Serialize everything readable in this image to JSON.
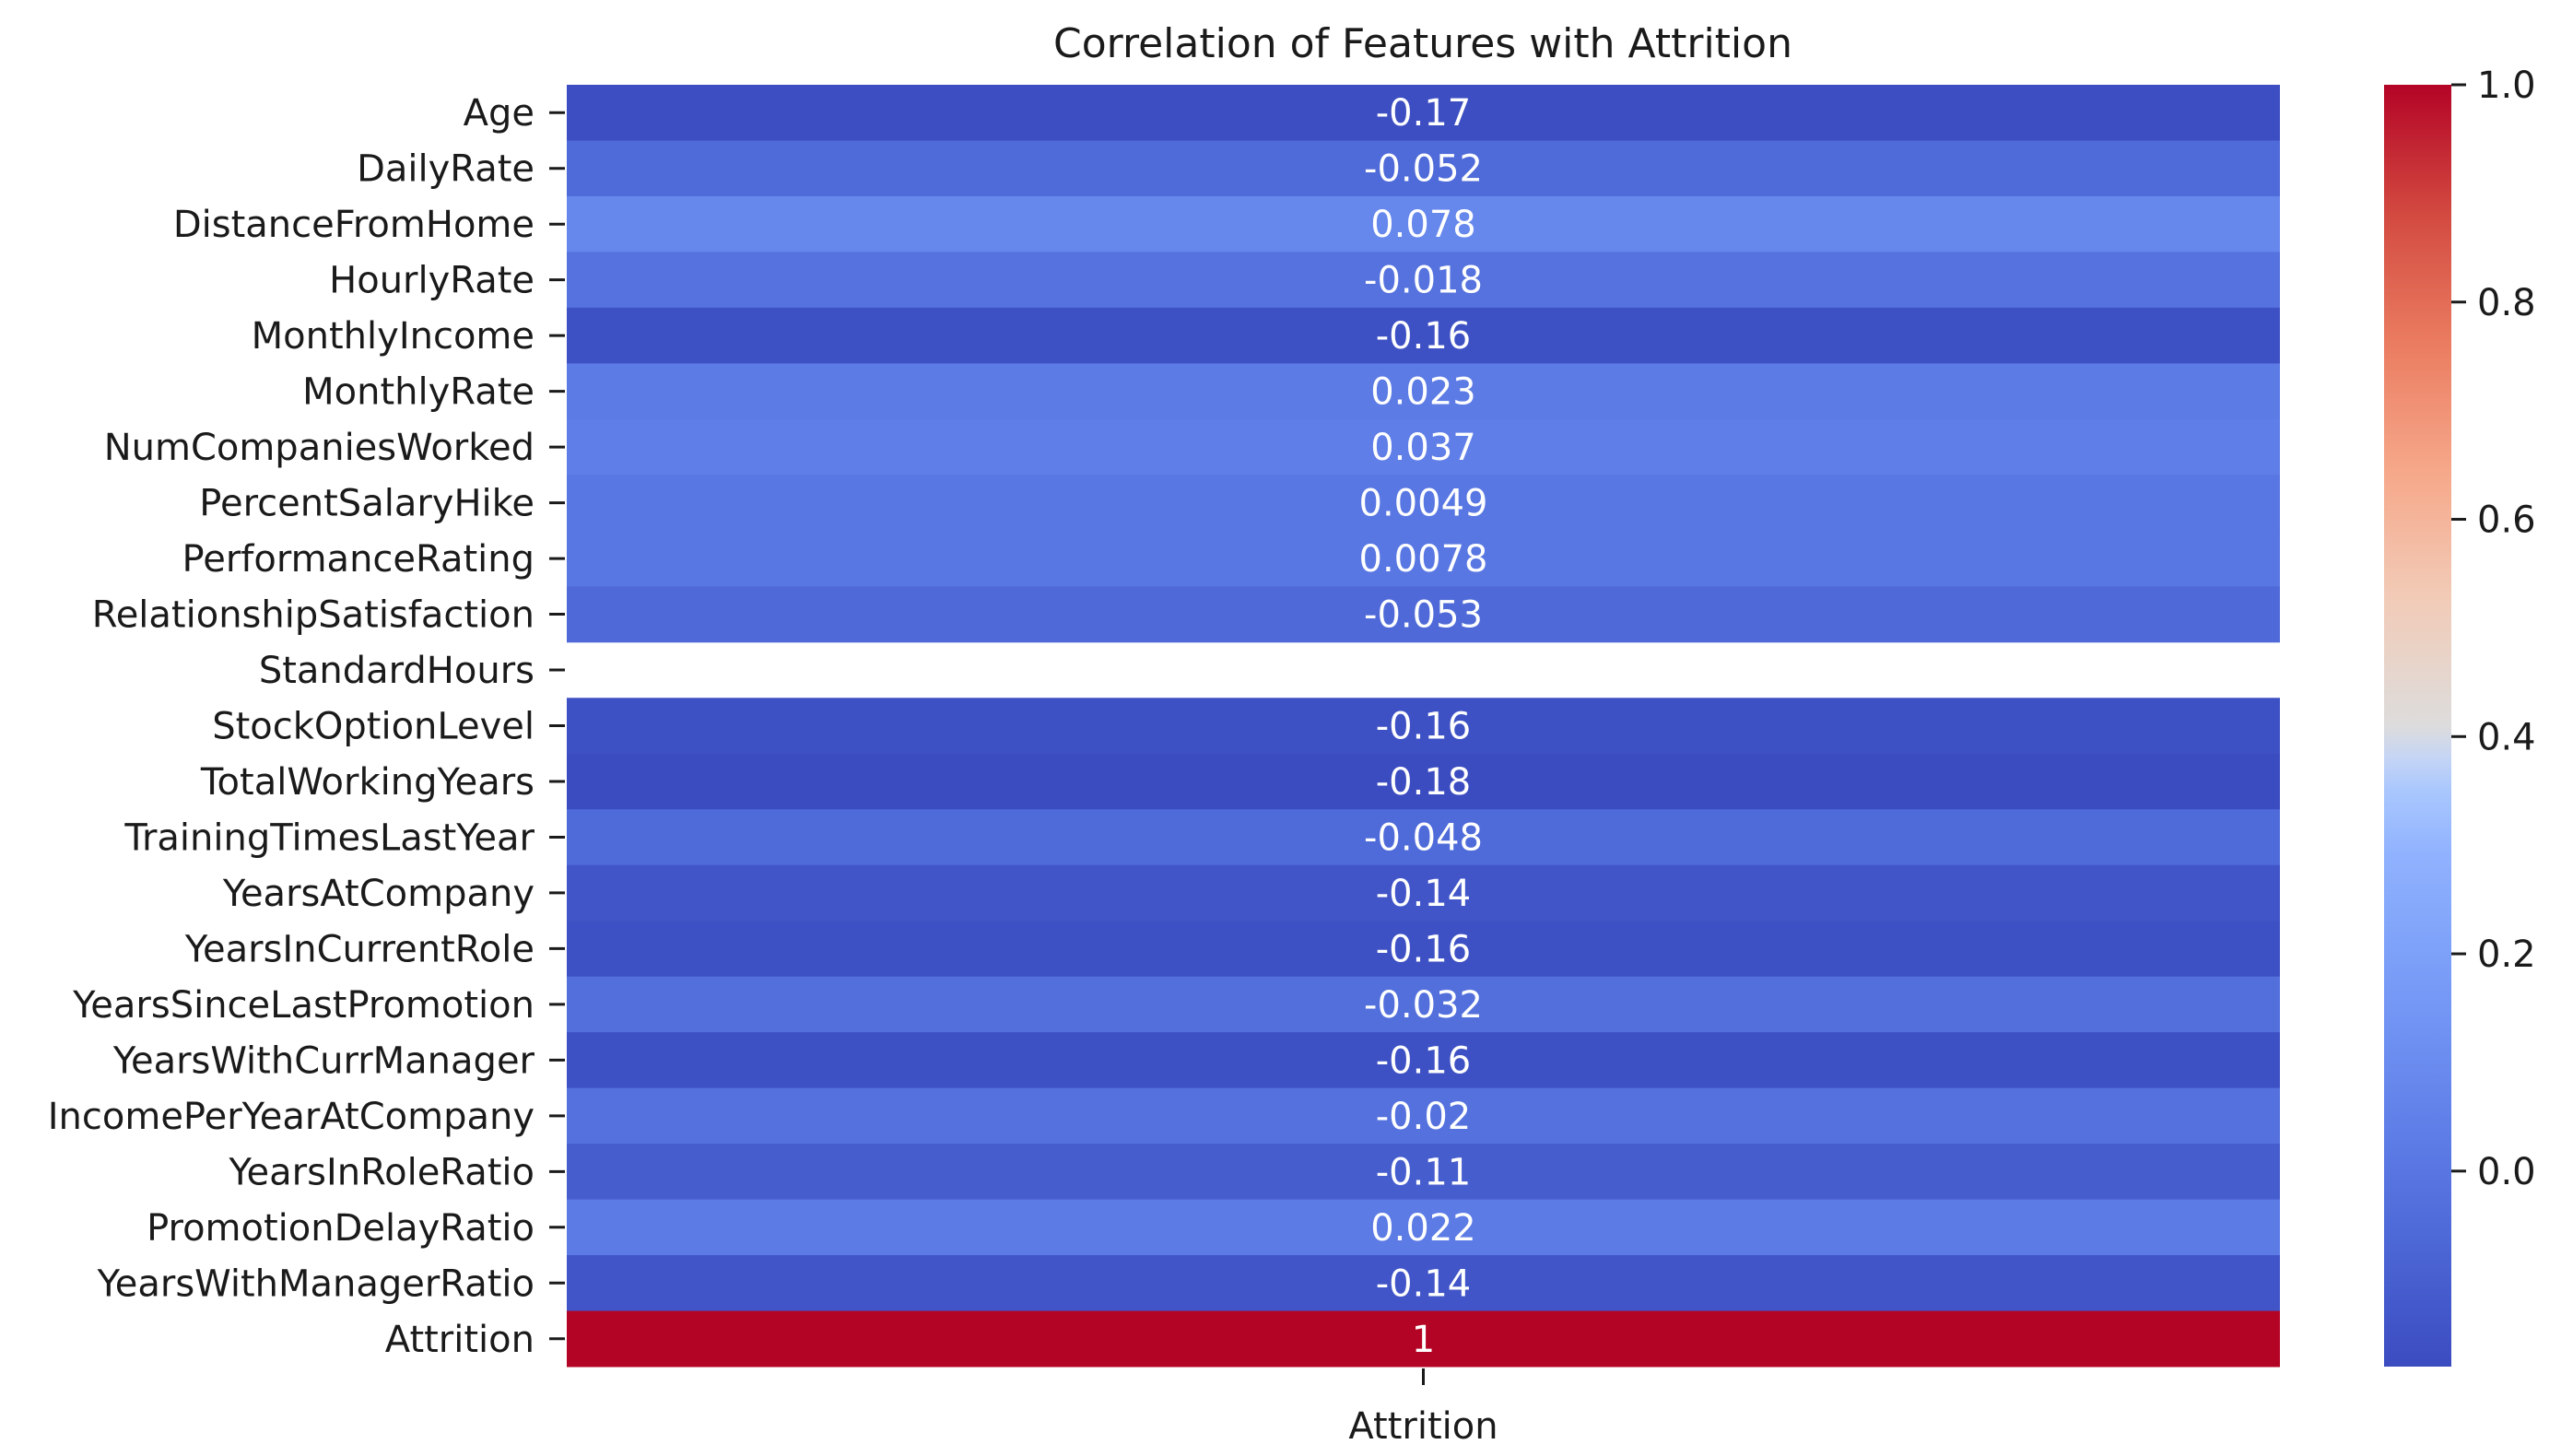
{
  "chart_data": {
    "type": "heatmap",
    "title": "Correlation of Features with Attrition",
    "columns": [
      "Attrition"
    ],
    "rows": [
      {
        "label": "Age",
        "value": -0.17,
        "text": "-0.17"
      },
      {
        "label": "DailyRate",
        "value": -0.052,
        "text": "-0.052"
      },
      {
        "label": "DistanceFromHome",
        "value": 0.078,
        "text": "0.078"
      },
      {
        "label": "HourlyRate",
        "value": -0.018,
        "text": "-0.018"
      },
      {
        "label": "MonthlyIncome",
        "value": -0.16,
        "text": "-0.16"
      },
      {
        "label": "MonthlyRate",
        "value": 0.023,
        "text": "0.023"
      },
      {
        "label": "NumCompaniesWorked",
        "value": 0.037,
        "text": "0.037"
      },
      {
        "label": "PercentSalaryHike",
        "value": 0.0049,
        "text": "0.0049"
      },
      {
        "label": "PerformanceRating",
        "value": 0.0078,
        "text": "0.0078"
      },
      {
        "label": "RelationshipSatisfaction",
        "value": -0.053,
        "text": "-0.053"
      },
      {
        "label": "StandardHours",
        "value": null,
        "text": ""
      },
      {
        "label": "StockOptionLevel",
        "value": -0.16,
        "text": "-0.16"
      },
      {
        "label": "TotalWorkingYears",
        "value": -0.18,
        "text": "-0.18"
      },
      {
        "label": "TrainingTimesLastYear",
        "value": -0.048,
        "text": "-0.048"
      },
      {
        "label": "YearsAtCompany",
        "value": -0.14,
        "text": "-0.14"
      },
      {
        "label": "YearsInCurrentRole",
        "value": -0.16,
        "text": "-0.16"
      },
      {
        "label": "YearsSinceLastPromotion",
        "value": -0.032,
        "text": "-0.032"
      },
      {
        "label": "YearsWithCurrManager",
        "value": -0.16,
        "text": "-0.16"
      },
      {
        "label": "IncomePerYearAtCompany",
        "value": -0.02,
        "text": "-0.02"
      },
      {
        "label": "YearsInRoleRatio",
        "value": -0.11,
        "text": "-0.11"
      },
      {
        "label": "PromotionDelayRatio",
        "value": 0.022,
        "text": "0.022"
      },
      {
        "label": "YearsWithManagerRatio",
        "value": -0.14,
        "text": "-0.14"
      },
      {
        "label": "Attrition",
        "value": 1,
        "text": "1"
      }
    ],
    "colorbar": {
      "colormap": "coolwarm",
      "vmin": -0.18,
      "vmax": 1.0,
      "ticks": [
        0.0,
        0.2,
        0.4,
        0.6,
        0.8,
        1.0
      ],
      "tick_labels": [
        "0.0",
        "0.2",
        "0.4",
        "0.6",
        "0.8",
        "1.0"
      ]
    },
    "grid": false
  }
}
